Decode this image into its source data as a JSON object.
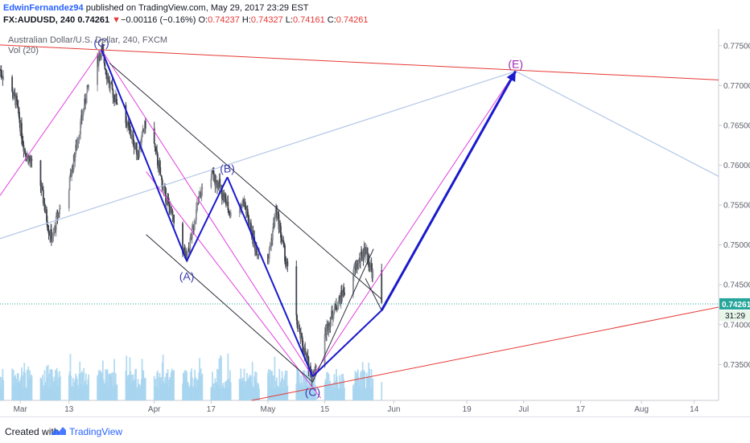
{
  "header": {
    "author": "EdwinFernandez94",
    "published": " published on TradingView.com, May 29, 2017 23:29 EST",
    "symbol": "FX:AUDUSD, 240",
    "last": "0.74261",
    "change_arrow": "▼",
    "change": "−0.00116 (−0.16%)",
    "o_label": "O:",
    "o": "0.74237",
    "h_label": "H:",
    "h": "0.74327",
    "l_label": "L:",
    "l": "0.74161",
    "c_label": "C:",
    "c": "0.74261"
  },
  "legend": {
    "title": "Australian Dollar/U.S. Dollar, 240, FXCM",
    "vol": "Vol (20)"
  },
  "footer": {
    "created": "Created with",
    "brand": "TradingView"
  },
  "colors": {
    "up": "#8a8d94",
    "down": "#3f424a",
    "volume": "#a6d4ef",
    "wave": "#1a1acc",
    "channel": "#e23ee0",
    "trend_red": "#e53935",
    "trend_blue": "#b3c7e8",
    "price_tag": "#26a69a"
  },
  "chart_data": {
    "type": "candlestick",
    "title": "Australian Dollar/U.S. Dollar, 240, FXCM",
    "symbol": "FX:AUDUSD",
    "interval": "240",
    "y_ticks": [
      0.775,
      0.77,
      0.765,
      0.76,
      0.755,
      0.75,
      0.745,
      0.74,
      0.735
    ],
    "y_tick_labels": [
      "0.77500",
      "0.77000",
      "0.76500",
      "0.76000",
      "0.75500",
      "0.75000",
      "0.74500",
      "0.74000",
      "0.73500"
    ],
    "ylim": [
      0.7305,
      0.7771
    ],
    "x_ticks": [
      "Mar",
      "13",
      "Apr",
      "17",
      "May",
      "15",
      "Jun",
      "19",
      "Jul",
      "17",
      "Aug",
      "14"
    ],
    "x_tick_dates": [
      "2017-03-01",
      "2017-03-13",
      "2017-04-03",
      "2017-04-17",
      "2017-05-01",
      "2017-05-15",
      "2017-06-01",
      "2017-06-19",
      "2017-07-03",
      "2017-07-17",
      "2017-08-01",
      "2017-08-14"
    ],
    "xlim": [
      "2017-02-24",
      "2017-08-20"
    ],
    "last_price": 0.74261,
    "last_price_label": "0.74261",
    "countdown": "31:29",
    "price_path": [
      [
        "2017-02-24",
        0.772
      ],
      [
        "2017-02-28",
        0.768
      ],
      [
        "2017-03-02",
        0.762
      ],
      [
        "2017-03-06",
        0.7575
      ],
      [
        "2017-03-08",
        0.752
      ],
      [
        "2017-03-09",
        0.7505
      ],
      [
        "2017-03-10",
        0.7535
      ],
      [
        "2017-03-13",
        0.7575
      ],
      [
        "2017-03-16",
        0.7655
      ],
      [
        "2017-03-18",
        0.7705
      ],
      [
        "2017-03-21",
        0.7745
      ],
      [
        "2017-03-23",
        0.77
      ],
      [
        "2017-03-27",
        0.7655
      ],
      [
        "2017-03-30",
        0.7615
      ],
      [
        "2017-04-01",
        0.7655
      ],
      [
        "2017-04-03",
        0.7625
      ],
      [
        "2017-04-05",
        0.7575
      ],
      [
        "2017-04-08",
        0.7525
      ],
      [
        "2017-04-11",
        0.748
      ],
      [
        "2017-04-13",
        0.7535
      ],
      [
        "2017-04-16",
        0.7595
      ],
      [
        "2017-04-19",
        0.7575
      ],
      [
        "2017-04-22",
        0.7535
      ],
      [
        "2017-04-25",
        0.7555
      ],
      [
        "2017-04-28",
        0.7495
      ],
      [
        "2017-05-01",
        0.748
      ],
      [
        "2017-05-03",
        0.7545
      ],
      [
        "2017-05-06",
        0.7465
      ],
      [
        "2017-05-08",
        0.7405
      ],
      [
        "2017-05-10",
        0.7365
      ],
      [
        "2017-05-12",
        0.7335
      ],
      [
        "2017-05-14",
        0.7375
      ],
      [
        "2017-05-17",
        0.7415
      ],
      [
        "2017-05-20",
        0.7445
      ],
      [
        "2017-05-23",
        0.7475
      ],
      [
        "2017-05-25",
        0.7495
      ],
      [
        "2017-05-27",
        0.746
      ],
      [
        "2017-05-29",
        0.7426
      ]
    ],
    "waves": [
      {
        "label": "(C)",
        "date": "2017-03-21",
        "price": 0.7745
      },
      {
        "label": "(A)",
        "date": "2017-04-11",
        "price": 0.748
      },
      {
        "label": "(B)",
        "date": "2017-04-21",
        "price": 0.7585
      },
      {
        "label": "(C)",
        "date": "2017-05-12",
        "price": 0.7335
      },
      {
        "label": "(E)",
        "date": "2017-07-01",
        "price": 0.7718
      }
    ]
  }
}
